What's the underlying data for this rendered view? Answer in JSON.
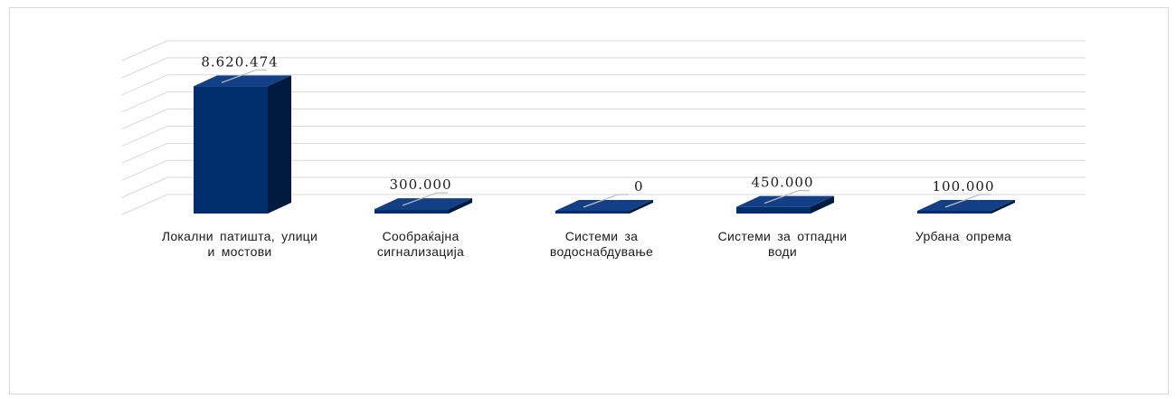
{
  "chart_data": {
    "type": "bar",
    "categories": [
      "Локални патишта, улици и мостови",
      "Сообраќајна сигнализација",
      "Системи за водоснабдување",
      "Системи за отпадни води",
      "Урбана опрема"
    ],
    "values": [
      8620474,
      300000,
      0,
      450000,
      100000
    ],
    "value_labels": [
      "8.620.474",
      "300.000",
      "0",
      "450.000",
      "100.000"
    ],
    "title": "",
    "xlabel": "",
    "ylabel": "",
    "ylim": [
      0,
      10000000
    ],
    "grid": true,
    "legend": "none",
    "colors": {
      "bar_front": "#002d6b",
      "bar_side": "#001a40",
      "bar_top": "#123f85",
      "grid": "#d9d9d9"
    }
  }
}
